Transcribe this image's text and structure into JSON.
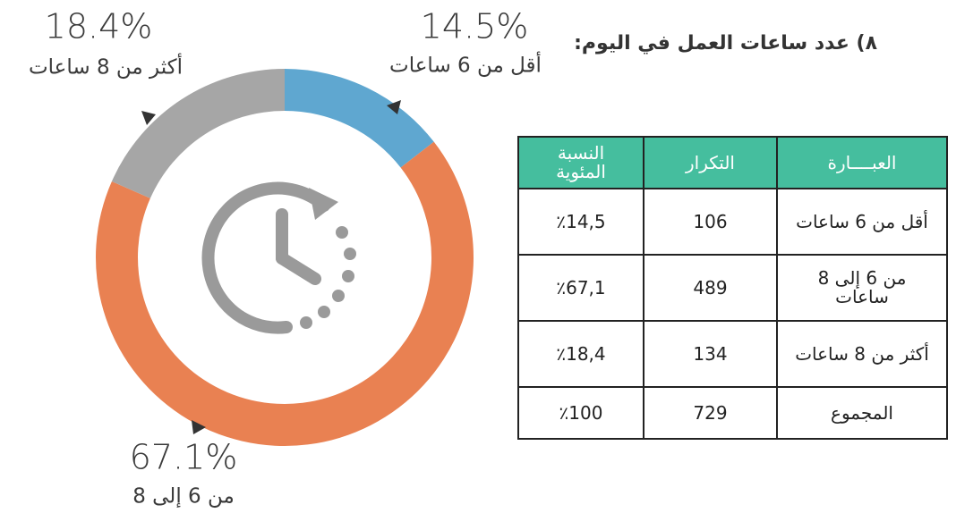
{
  "chart_data": {
    "type": "donut",
    "categories": [
      "أقل من 6 ساعات",
      "من 6 إلى 8",
      "أكثر من 8 ساعات"
    ],
    "values": [
      14.5,
      67.1,
      18.4
    ],
    "value_labels": [
      "14.5%",
      "67.1%",
      "18.4%"
    ],
    "colors": [
      "#5fa7d0",
      "#e98152",
      "#a6a6a6"
    ]
  },
  "heading": "٨) عدد ساعات العمل في اليوم:",
  "table": {
    "header": [
      "العبــــارة",
      "التكرار",
      "النسبة المئوية"
    ],
    "rows": [
      [
        "أقل من 6 ساعات",
        "106",
        "٪14,5"
      ],
      [
        "من 6 إلى 8 ساعات",
        "489",
        "٪67,1"
      ],
      [
        "أكثر من 8 ساعات",
        "134",
        "٪18,4"
      ],
      [
        "المجموع",
        "729",
        "٪100"
      ]
    ]
  }
}
